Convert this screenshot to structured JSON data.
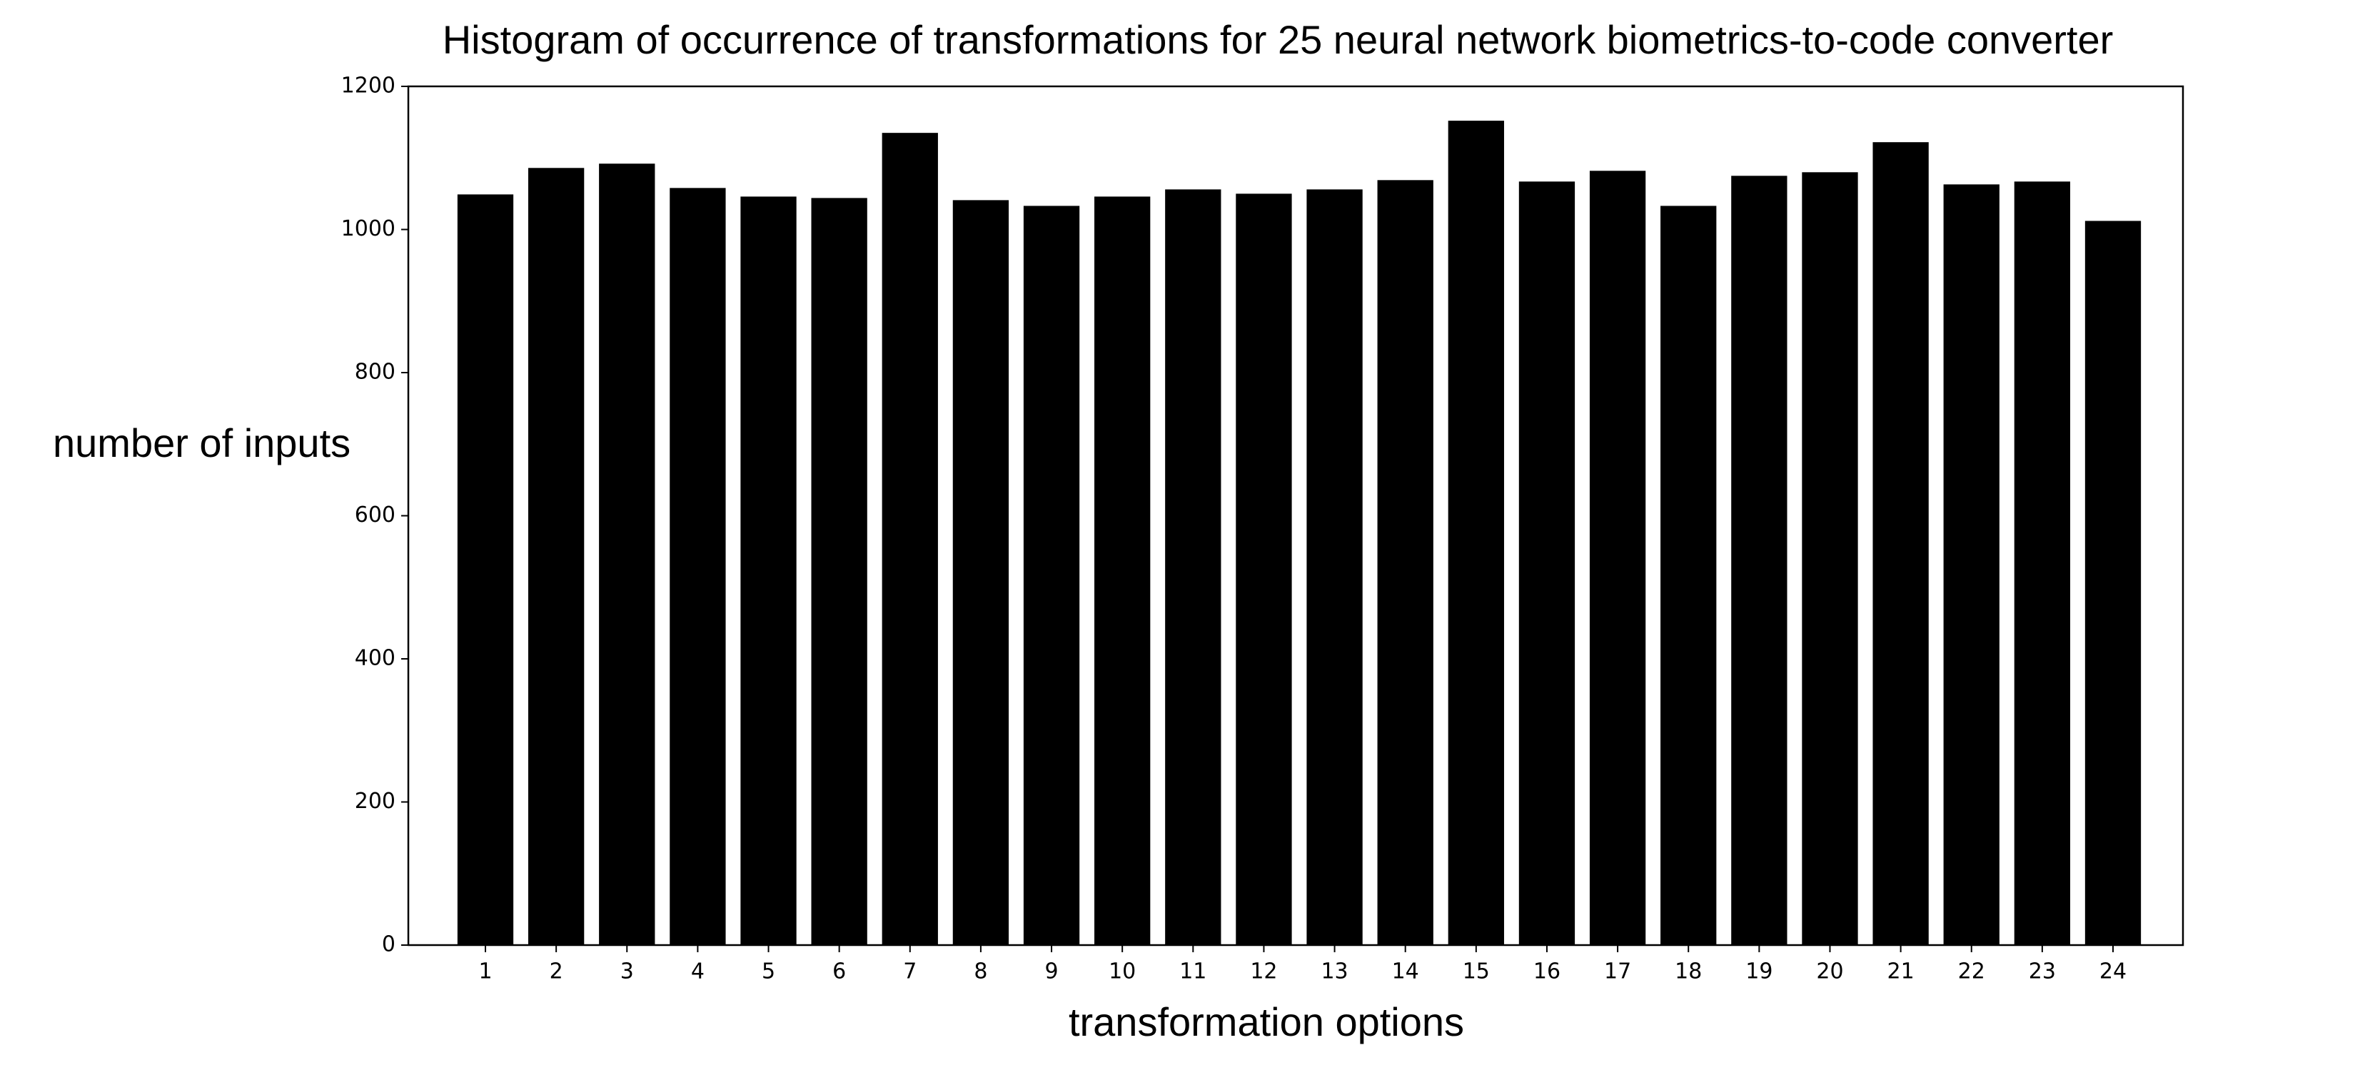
{
  "chart_data": {
    "type": "bar",
    "title": "Histogram of occurrence of transformations for 25 neural network biometrics-to-code converter",
    "x_label": "transformation options",
    "y_label": "number of inputs",
    "categories": [
      "1",
      "2",
      "3",
      "4",
      "5",
      "6",
      "7",
      "8",
      "9",
      "10",
      "11",
      "12",
      "13",
      "14",
      "15",
      "16",
      "17",
      "18",
      "19",
      "20",
      "21",
      "22",
      "23",
      "24"
    ],
    "values": [
      1050,
      1087,
      1093,
      1059,
      1047,
      1045,
      1136,
      1042,
      1034,
      1047,
      1057,
      1051,
      1057,
      1070,
      1153,
      1068,
      1083,
      1034,
      1076,
      1081,
      1123,
      1064,
      1068,
      1013
    ],
    "color": "#000000",
    "ylim": [
      0,
      1200
    ],
    "yticks": [
      0,
      200,
      400,
      600,
      800,
      1000,
      1200
    ],
    "grid": false
  }
}
